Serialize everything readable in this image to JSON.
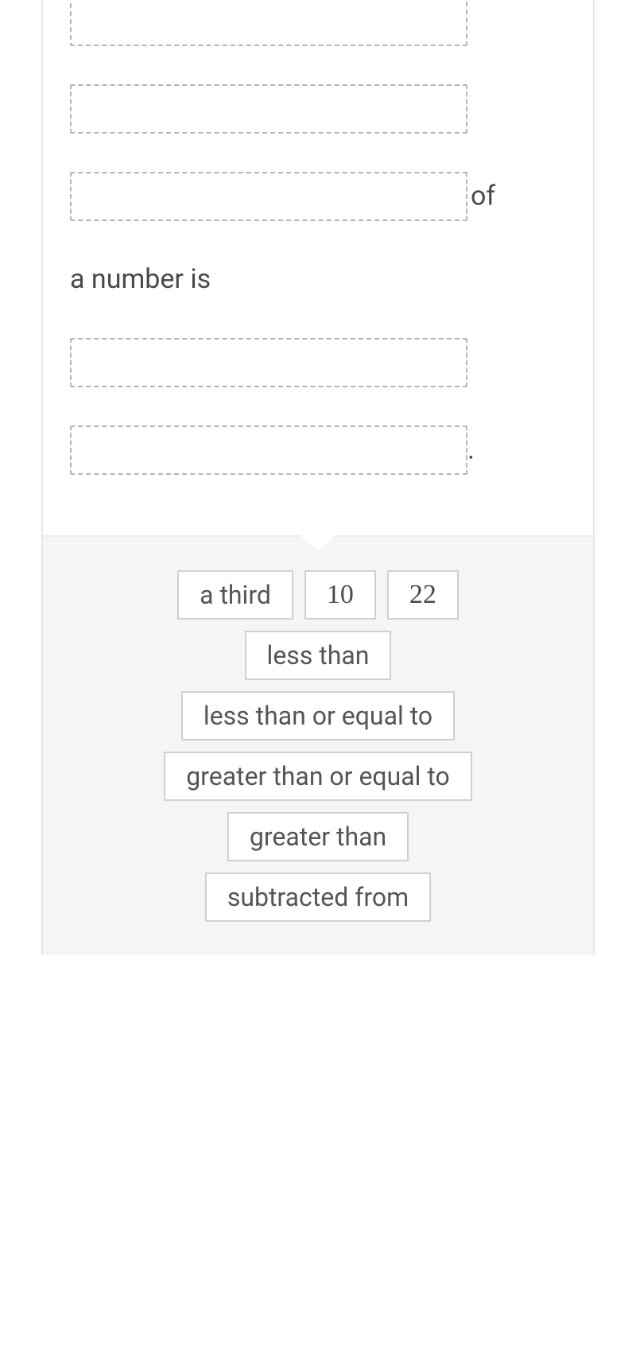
{
  "statement": {
    "text_of": "of",
    "text_anumber": "a number is",
    "text_period": "."
  },
  "choices": {
    "a_third": "a third",
    "ten": "10",
    "twentytwo": "22",
    "less_than": "less than",
    "lte": "less than or equal to",
    "gte": "greater than or equal to",
    "greater_than": "greater than",
    "subtracted_from": "subtracted from"
  },
  "colors": {
    "page_bg": "#ffffff",
    "choices_bg": "#f5f5f5",
    "border": "#e5e5e5",
    "slot_border": "#b5b5b5",
    "choice_border": "#d0d0d0",
    "text": "#4a4a4a",
    "choice_text": "#555555"
  }
}
